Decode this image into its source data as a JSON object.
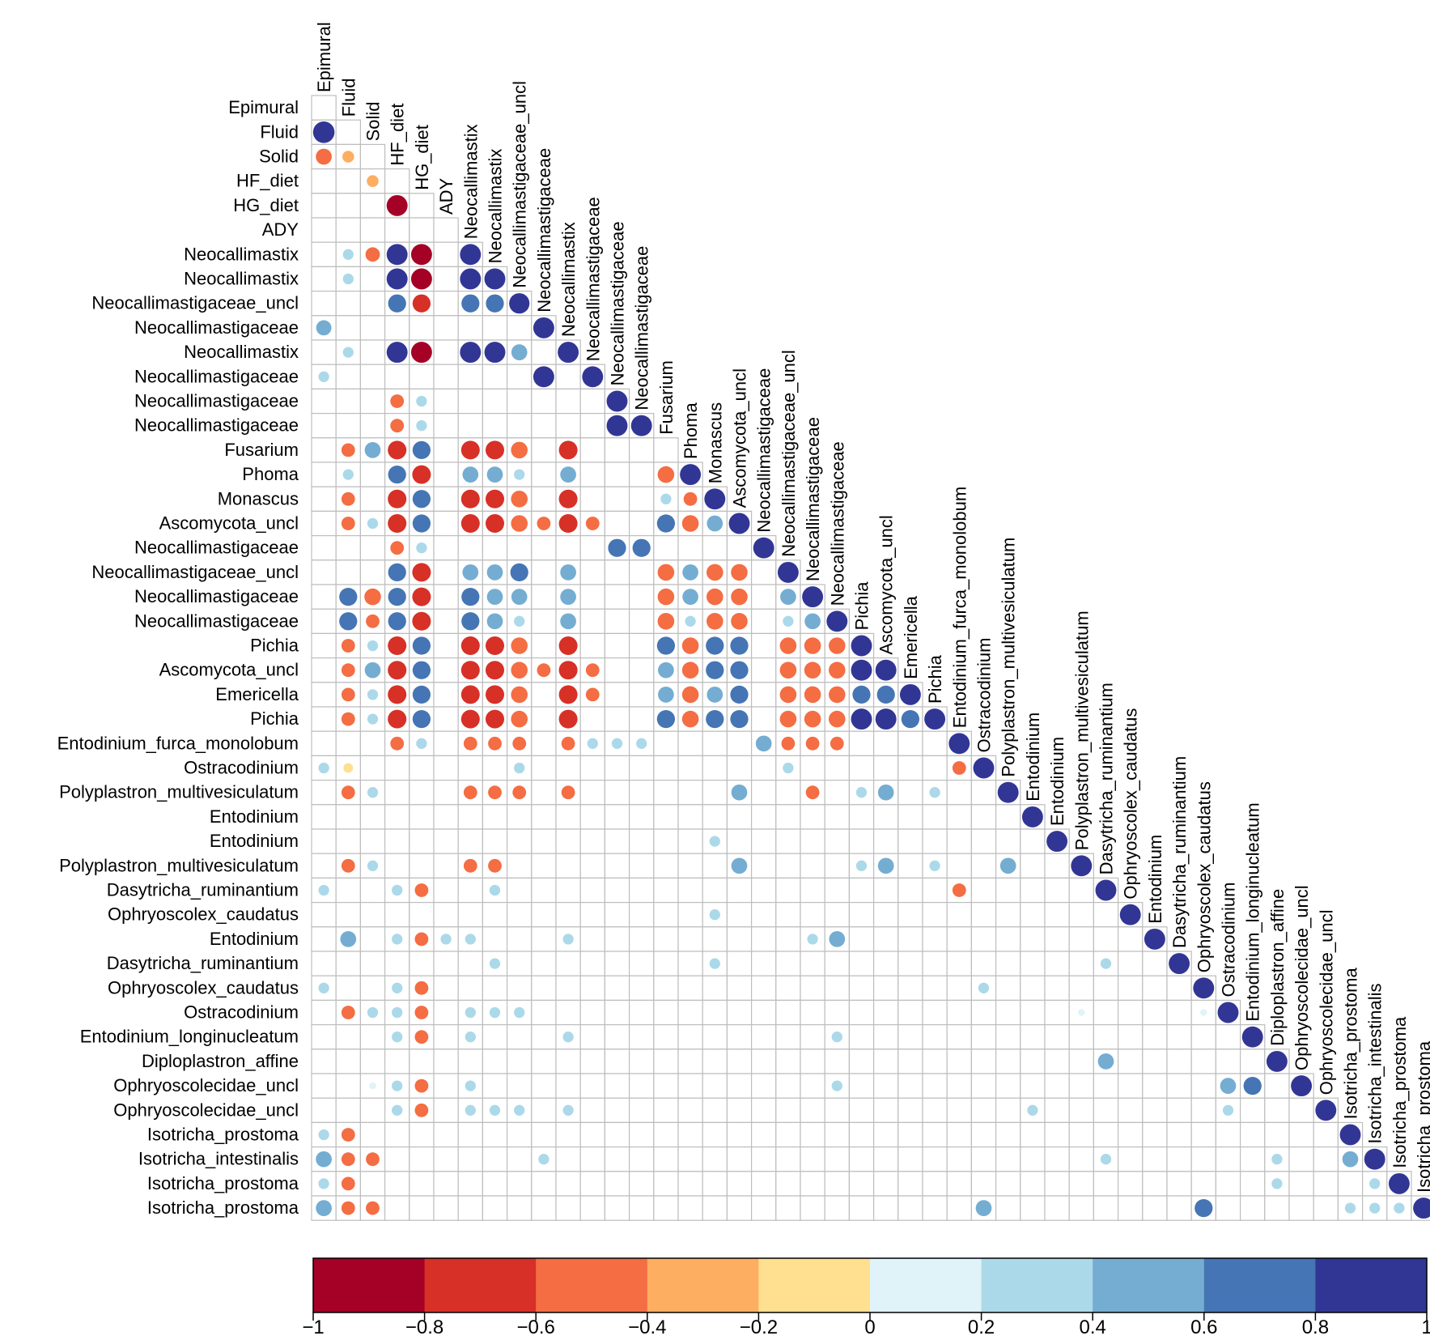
{
  "chart_data": {
    "type": "heatmap",
    "subtype": "correlation-lower-triangle-circles",
    "title": "",
    "variables": [
      "Epimural",
      "Fluid",
      "Solid",
      "HF_diet",
      "HG_diet",
      "ADY",
      "Neocallimastix",
      "Neocallimastix",
      "Neocallimastigaceae_uncl",
      "Neocallimastigaceae",
      "Neocallimastix",
      "Neocallimastigaceae",
      "Neocallimastigaceae",
      "Neocallimastigaceae",
      "Fusarium",
      "Phoma",
      "Monascus",
      "Ascomycota_uncl",
      "Neocallimastigaceae",
      "Neocallimastigaceae_uncl",
      "Neocallimastigaceae",
      "Neocallimastigaceae",
      "Pichia",
      "Ascomycota_uncl",
      "Emericella",
      "Pichia",
      "Entodinium_furca_monolobum",
      "Ostracodinium",
      "Polyplastron_multivesiculatum",
      "Entodinium",
      "Entodinium",
      "Polyplastron_multivesiculatum",
      "Dasytricha_ruminantium",
      "Ophryoscolex_caudatus",
      "Entodinium",
      "Dasytricha_ruminantium",
      "Ophryoscolex_caudatus",
      "Ostracodinium",
      "Entodinium_longinucleatum",
      "Diploplastron_affine",
      "Ophryoscolecidae_uncl",
      "Ophryoscolecidae_uncl",
      "Isotricha_prostoma",
      "Isotricha_intestinalis",
      "Isotricha_prostoma",
      "Isotricha_prostoma"
    ],
    "colorbar": {
      "ticks": [
        "−1",
        "−0.8",
        "−0.6",
        "−0.4",
        "−0.2",
        "0",
        "0.2",
        "0.4",
        "0.6",
        "0.8",
        "1"
      ],
      "range": [
        -1,
        1
      ],
      "bin_colors": [
        "#a50026",
        "#d73027",
        "#f46d43",
        "#fdae61",
        "#fee090",
        "#e0f3f8",
        "#abd9e9",
        "#74add1",
        "#4575b4",
        "#313695"
      ]
    },
    "correlations": [
      [
        1,
        0,
        1
      ],
      [
        2,
        0,
        -0.55
      ],
      [
        2,
        1,
        -0.3
      ],
      [
        3,
        2,
        -0.3
      ],
      [
        4,
        3,
        -0.95
      ],
      [
        6,
        1,
        0.25
      ],
      [
        6,
        2,
        -0.45
      ],
      [
        6,
        3,
        0.95
      ],
      [
        6,
        4,
        -0.95
      ],
      [
        6,
        6,
        0.95
      ],
      [
        7,
        1,
        0.25
      ],
      [
        7,
        3,
        0.95
      ],
      [
        7,
        4,
        -0.95
      ],
      [
        7,
        6,
        0.95
      ],
      [
        7,
        7,
        0.95
      ],
      [
        8,
        3,
        0.7
      ],
      [
        8,
        4,
        -0.7
      ],
      [
        8,
        6,
        0.7
      ],
      [
        8,
        7,
        0.7
      ],
      [
        8,
        8,
        0.9
      ],
      [
        9,
        0,
        0.5
      ],
      [
        9,
        9,
        0.95
      ],
      [
        10,
        1,
        0.25
      ],
      [
        10,
        3,
        0.95
      ],
      [
        10,
        4,
        -0.95
      ],
      [
        10,
        6,
        0.95
      ],
      [
        10,
        7,
        0.95
      ],
      [
        10,
        8,
        0.55
      ],
      [
        10,
        10,
        0.95
      ],
      [
        11,
        0,
        0.25
      ],
      [
        11,
        9,
        0.95
      ],
      [
        11,
        11,
        0.95
      ],
      [
        12,
        3,
        -0.4
      ],
      [
        12,
        4,
        0.25
      ],
      [
        12,
        12,
        0.95
      ],
      [
        13,
        3,
        -0.4
      ],
      [
        13,
        4,
        0.25
      ],
      [
        13,
        12,
        0.95
      ],
      [
        13,
        13,
        0.95
      ],
      [
        14,
        1,
        -0.4
      ],
      [
        14,
        2,
        0.55
      ],
      [
        14,
        3,
        -0.75
      ],
      [
        14,
        4,
        0.7
      ],
      [
        14,
        6,
        -0.75
      ],
      [
        14,
        7,
        -0.75
      ],
      [
        14,
        8,
        -0.6
      ],
      [
        14,
        10,
        -0.75
      ],
      [
        15,
        1,
        0.25
      ],
      [
        15,
        3,
        0.7
      ],
      [
        15,
        4,
        -0.75
      ],
      [
        15,
        6,
        0.55
      ],
      [
        15,
        7,
        0.55
      ],
      [
        15,
        8,
        0.25
      ],
      [
        15,
        10,
        0.55
      ],
      [
        15,
        14,
        -0.6
      ],
      [
        15,
        15,
        0.95
      ],
      [
        16,
        1,
        -0.4
      ],
      [
        16,
        3,
        -0.75
      ],
      [
        16,
        4,
        0.7
      ],
      [
        16,
        6,
        -0.75
      ],
      [
        16,
        7,
        -0.75
      ],
      [
        16,
        8,
        -0.6
      ],
      [
        16,
        10,
        -0.75
      ],
      [
        16,
        14,
        0.25
      ],
      [
        16,
        15,
        -0.4
      ],
      [
        16,
        16,
        0.95
      ],
      [
        17,
        1,
        -0.4
      ],
      [
        17,
        2,
        0.25
      ],
      [
        17,
        3,
        -0.75
      ],
      [
        17,
        4,
        0.7
      ],
      [
        17,
        6,
        -0.75
      ],
      [
        17,
        7,
        -0.75
      ],
      [
        17,
        8,
        -0.6
      ],
      [
        17,
        9,
        -0.4
      ],
      [
        17,
        10,
        -0.75
      ],
      [
        17,
        11,
        -0.4
      ],
      [
        17,
        14,
        0.7
      ],
      [
        17,
        15,
        -0.6
      ],
      [
        17,
        16,
        0.55
      ],
      [
        17,
        17,
        0.95
      ],
      [
        18,
        3,
        -0.4
      ],
      [
        18,
        4,
        0.25
      ],
      [
        18,
        12,
        0.7
      ],
      [
        18,
        13,
        0.7
      ],
      [
        18,
        18,
        0.95
      ],
      [
        19,
        3,
        0.7
      ],
      [
        19,
        4,
        -0.75
      ],
      [
        19,
        6,
        0.55
      ],
      [
        19,
        7,
        0.55
      ],
      [
        19,
        8,
        0.7
      ],
      [
        19,
        10,
        0.55
      ],
      [
        19,
        14,
        -0.6
      ],
      [
        19,
        15,
        0.55
      ],
      [
        19,
        16,
        -0.6
      ],
      [
        19,
        17,
        -0.6
      ],
      [
        19,
        19,
        0.95
      ],
      [
        20,
        1,
        0.7
      ],
      [
        20,
        2,
        -0.6
      ],
      [
        20,
        3,
        0.7
      ],
      [
        20,
        4,
        -0.75
      ],
      [
        20,
        6,
        0.7
      ],
      [
        20,
        7,
        0.55
      ],
      [
        20,
        8,
        0.55
      ],
      [
        20,
        10,
        0.55
      ],
      [
        20,
        14,
        -0.6
      ],
      [
        20,
        15,
        0.55
      ],
      [
        20,
        16,
        -0.6
      ],
      [
        20,
        17,
        -0.6
      ],
      [
        20,
        19,
        0.55
      ],
      [
        20,
        20,
        0.95
      ],
      [
        21,
        1,
        0.7
      ],
      [
        21,
        2,
        -0.4
      ],
      [
        21,
        3,
        0.7
      ],
      [
        21,
        4,
        -0.75
      ],
      [
        21,
        6,
        0.7
      ],
      [
        21,
        7,
        0.55
      ],
      [
        21,
        8,
        0.25
      ],
      [
        21,
        10,
        0.55
      ],
      [
        21,
        14,
        -0.6
      ],
      [
        21,
        15,
        0.25
      ],
      [
        21,
        16,
        -0.6
      ],
      [
        21,
        17,
        -0.6
      ],
      [
        21,
        19,
        0.25
      ],
      [
        21,
        20,
        0.55
      ],
      [
        21,
        21,
        0.95
      ],
      [
        22,
        1,
        -0.4
      ],
      [
        22,
        2,
        0.25
      ],
      [
        22,
        3,
        -0.75
      ],
      [
        22,
        4,
        0.7
      ],
      [
        22,
        6,
        -0.75
      ],
      [
        22,
        7,
        -0.75
      ],
      [
        22,
        8,
        -0.6
      ],
      [
        22,
        10,
        -0.75
      ],
      [
        22,
        14,
        0.7
      ],
      [
        22,
        15,
        -0.6
      ],
      [
        22,
        16,
        0.7
      ],
      [
        22,
        17,
        0.7
      ],
      [
        22,
        19,
        -0.6
      ],
      [
        22,
        20,
        -0.6
      ],
      [
        22,
        21,
        -0.6
      ],
      [
        22,
        22,
        0.95
      ],
      [
        23,
        1,
        -0.4
      ],
      [
        23,
        2,
        0.55
      ],
      [
        23,
        3,
        -0.75
      ],
      [
        23,
        4,
        0.7
      ],
      [
        23,
        6,
        -0.75
      ],
      [
        23,
        7,
        -0.75
      ],
      [
        23,
        8,
        -0.6
      ],
      [
        23,
        9,
        -0.4
      ],
      [
        23,
        10,
        -0.75
      ],
      [
        23,
        11,
        -0.4
      ],
      [
        23,
        14,
        0.55
      ],
      [
        23,
        15,
        -0.6
      ],
      [
        23,
        16,
        0.7
      ],
      [
        23,
        17,
        0.7
      ],
      [
        23,
        19,
        -0.6
      ],
      [
        23,
        20,
        -0.6
      ],
      [
        23,
        21,
        -0.6
      ],
      [
        23,
        22,
        0.95
      ],
      [
        23,
        23,
        0.95
      ],
      [
        24,
        1,
        -0.4
      ],
      [
        24,
        2,
        0.25
      ],
      [
        24,
        3,
        -0.75
      ],
      [
        24,
        4,
        0.7
      ],
      [
        24,
        6,
        -0.75
      ],
      [
        24,
        7,
        -0.75
      ],
      [
        24,
        8,
        -0.6
      ],
      [
        24,
        10,
        -0.75
      ],
      [
        24,
        11,
        -0.4
      ],
      [
        24,
        14,
        0.55
      ],
      [
        24,
        15,
        -0.6
      ],
      [
        24,
        16,
        0.55
      ],
      [
        24,
        17,
        0.7
      ],
      [
        24,
        19,
        -0.6
      ],
      [
        24,
        20,
        -0.6
      ],
      [
        24,
        21,
        -0.6
      ],
      [
        24,
        22,
        0.7
      ],
      [
        24,
        23,
        0.7
      ],
      [
        24,
        24,
        0.95
      ],
      [
        25,
        1,
        -0.4
      ],
      [
        25,
        2,
        0.25
      ],
      [
        25,
        3,
        -0.75
      ],
      [
        25,
        4,
        0.7
      ],
      [
        25,
        6,
        -0.75
      ],
      [
        25,
        7,
        -0.75
      ],
      [
        25,
        8,
        -0.6
      ],
      [
        25,
        10,
        -0.75
      ],
      [
        25,
        14,
        0.7
      ],
      [
        25,
        15,
        -0.6
      ],
      [
        25,
        16,
        0.7
      ],
      [
        25,
        17,
        0.7
      ],
      [
        25,
        19,
        -0.6
      ],
      [
        25,
        20,
        -0.6
      ],
      [
        25,
        21,
        -0.6
      ],
      [
        25,
        22,
        0.95
      ],
      [
        25,
        23,
        0.95
      ],
      [
        25,
        24,
        0.7
      ],
      [
        25,
        25,
        0.95
      ],
      [
        26,
        3,
        -0.4
      ],
      [
        26,
        4,
        0.25
      ],
      [
        26,
        6,
        -0.4
      ],
      [
        26,
        7,
        -0.4
      ],
      [
        26,
        8,
        -0.4
      ],
      [
        26,
        10,
        -0.4
      ],
      [
        26,
        11,
        0.25
      ],
      [
        26,
        12,
        0.25
      ],
      [
        26,
        13,
        0.25
      ],
      [
        26,
        18,
        0.55
      ],
      [
        26,
        19,
        -0.4
      ],
      [
        26,
        20,
        -0.4
      ],
      [
        26,
        21,
        -0.4
      ],
      [
        26,
        26,
        0.95
      ],
      [
        27,
        0,
        0.25
      ],
      [
        27,
        1,
        -0.2
      ],
      [
        27,
        8,
        0.25
      ],
      [
        27,
        19,
        0.25
      ],
      [
        27,
        26,
        -0.4
      ],
      [
        27,
        27,
        0.95
      ],
      [
        28,
        1,
        -0.4
      ],
      [
        28,
        2,
        0.25
      ],
      [
        28,
        6,
        -0.4
      ],
      [
        28,
        7,
        -0.4
      ],
      [
        28,
        8,
        -0.4
      ],
      [
        28,
        10,
        -0.4
      ],
      [
        28,
        17,
        0.55
      ],
      [
        28,
        20,
        -0.4
      ],
      [
        28,
        22,
        0.25
      ],
      [
        28,
        23,
        0.55
      ],
      [
        28,
        25,
        0.25
      ],
      [
        28,
        28,
        0.95
      ],
      [
        29,
        29,
        0.95
      ],
      [
        30,
        16,
        0.25
      ],
      [
        30,
        30,
        0.95
      ],
      [
        31,
        1,
        -0.4
      ],
      [
        31,
        2,
        0.25
      ],
      [
        31,
        6,
        -0.4
      ],
      [
        31,
        7,
        -0.4
      ],
      [
        31,
        17,
        0.55
      ],
      [
        31,
        22,
        0.25
      ],
      [
        31,
        23,
        0.55
      ],
      [
        31,
        25,
        0.25
      ],
      [
        31,
        28,
        0.55
      ],
      [
        31,
        31,
        0.95
      ],
      [
        32,
        0,
        0.25
      ],
      [
        32,
        3,
        0.25
      ],
      [
        32,
        4,
        -0.4
      ],
      [
        32,
        7,
        0.25
      ],
      [
        32,
        26,
        -0.4
      ],
      [
        32,
        32,
        0.95
      ],
      [
        33,
        16,
        0.25
      ],
      [
        33,
        33,
        0.95
      ],
      [
        34,
        1,
        0.55
      ],
      [
        34,
        3,
        0.25
      ],
      [
        34,
        4,
        -0.4
      ],
      [
        34,
        5,
        0.25
      ],
      [
        34,
        6,
        0.25
      ],
      [
        34,
        10,
        0.25
      ],
      [
        34,
        20,
        0.25
      ],
      [
        34,
        21,
        0.55
      ],
      [
        34,
        34,
        0.95
      ],
      [
        35,
        7,
        0.25
      ],
      [
        35,
        16,
        0.25
      ],
      [
        35,
        32,
        0.25
      ],
      [
        35,
        35,
        0.95
      ],
      [
        36,
        0,
        0.25
      ],
      [
        36,
        3,
        0.25
      ],
      [
        36,
        4,
        -0.4
      ],
      [
        36,
        27,
        0.25
      ],
      [
        36,
        36,
        0.95
      ],
      [
        37,
        1,
        -0.4
      ],
      [
        37,
        2,
        0.25
      ],
      [
        37,
        3,
        0.25
      ],
      [
        37,
        4,
        -0.4
      ],
      [
        37,
        6,
        0.25
      ],
      [
        37,
        7,
        0.25
      ],
      [
        37,
        8,
        0.25
      ],
      [
        37,
        31,
        0.1
      ],
      [
        37,
        36,
        0.1
      ],
      [
        37,
        37,
        0.95
      ],
      [
        38,
        3,
        0.25
      ],
      [
        38,
        4,
        -0.4
      ],
      [
        38,
        6,
        0.25
      ],
      [
        38,
        10,
        0.25
      ],
      [
        38,
        21,
        0.25
      ],
      [
        38,
        38,
        0.95
      ],
      [
        39,
        32,
        0.55
      ],
      [
        39,
        39,
        0.95
      ],
      [
        40,
        2,
        0.1
      ],
      [
        40,
        3,
        0.25
      ],
      [
        40,
        4,
        -0.4
      ],
      [
        40,
        6,
        0.25
      ],
      [
        40,
        21,
        0.25
      ],
      [
        40,
        37,
        0.55
      ],
      [
        40,
        38,
        0.7
      ],
      [
        40,
        40,
        0.95
      ],
      [
        41,
        3,
        0.25
      ],
      [
        41,
        4,
        -0.4
      ],
      [
        41,
        6,
        0.25
      ],
      [
        41,
        7,
        0.25
      ],
      [
        41,
        8,
        0.25
      ],
      [
        41,
        10,
        0.25
      ],
      [
        41,
        29,
        0.25
      ],
      [
        41,
        37,
        0.25
      ],
      [
        41,
        41,
        0.95
      ],
      [
        42,
        0,
        0.25
      ],
      [
        42,
        1,
        -0.4
      ],
      [
        42,
        42,
        0.95
      ],
      [
        43,
        0,
        0.55
      ],
      [
        43,
        1,
        -0.4
      ],
      [
        43,
        2,
        -0.4
      ],
      [
        43,
        9,
        0.25
      ],
      [
        43,
        32,
        0.25
      ],
      [
        43,
        39,
        0.25
      ],
      [
        43,
        42,
        0.55
      ],
      [
        43,
        43,
        0.95
      ],
      [
        44,
        0,
        0.25
      ],
      [
        44,
        1,
        -0.4
      ],
      [
        44,
        39,
        0.25
      ],
      [
        44,
        43,
        0.25
      ],
      [
        44,
        44,
        0.95
      ],
      [
        45,
        0,
        0.55
      ],
      [
        45,
        1,
        -0.4
      ],
      [
        45,
        2,
        -0.4
      ],
      [
        45,
        27,
        0.55
      ],
      [
        45,
        36,
        0.7
      ],
      [
        45,
        42,
        0.25
      ],
      [
        45,
        43,
        0.25
      ],
      [
        45,
        44,
        0.25
      ],
      [
        45,
        45,
        0.95
      ]
    ]
  }
}
